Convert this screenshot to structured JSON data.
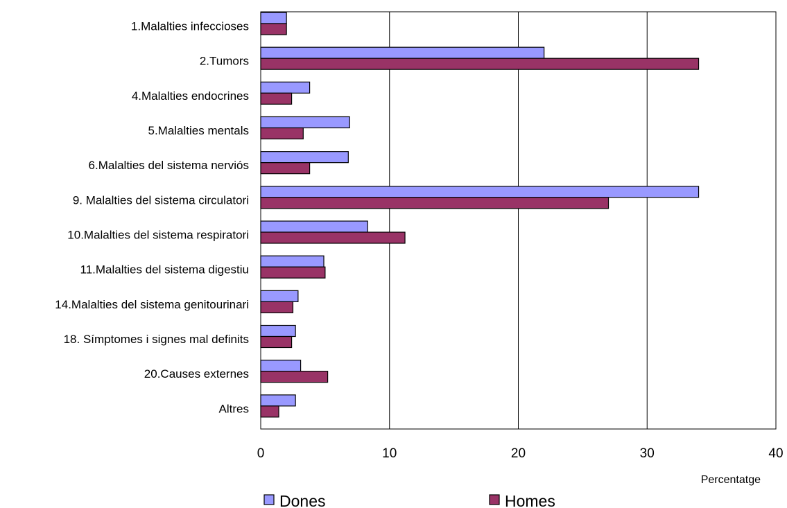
{
  "chart_data": {
    "type": "bar",
    "orientation": "horizontal",
    "categories": [
      "1.Malalties infeccioses",
      "2.Tumors",
      "4.Malalties endocrines",
      "5.Malalties mentals",
      "6.Malalties del sistema nerviós",
      "9. Malalties del sistema circulatori",
      "10.Malalties del sistema respiratori",
      "11.Malalties del sistema digestiu",
      "14.Malalties del sistema genitourinari",
      "18. Símptomes i signes mal definits",
      "20.Causes externes",
      "Altres"
    ],
    "series": [
      {
        "name": "Dones",
        "color": "#9999ff",
        "values": [
          2.0,
          22.0,
          3.8,
          6.9,
          6.8,
          34.0,
          8.3,
          4.9,
          2.9,
          2.7,
          3.1,
          2.7
        ]
      },
      {
        "name": "Homes",
        "color": "#993366",
        "values": [
          2.0,
          34.0,
          2.4,
          3.3,
          3.8,
          27.0,
          11.2,
          5.0,
          2.5,
          2.4,
          5.2,
          1.4
        ]
      }
    ],
    "xlim": [
      0,
      40
    ],
    "xticks": [
      "0",
      "10",
      "20",
      "30",
      "40"
    ],
    "xlabel": "Percentatge",
    "ylabel": "",
    "title": "",
    "grid": "vertical",
    "legend_position": "bottom"
  }
}
